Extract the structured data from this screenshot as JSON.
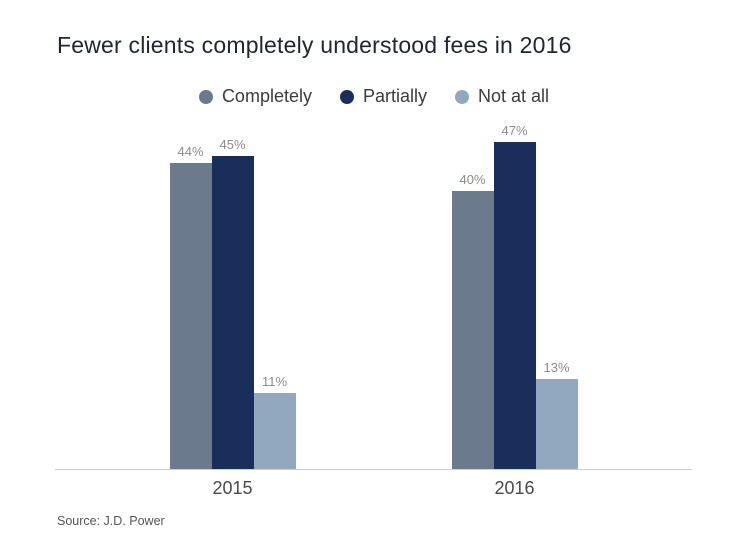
{
  "chart_data": {
    "type": "bar",
    "title": "Fewer clients completely understood fees in 2016",
    "categories": [
      "2015",
      "2016"
    ],
    "series": [
      {
        "name": "Completely",
        "values": [
          44,
          40
        ],
        "color": "#6b7b8d"
      },
      {
        "name": "Partially",
        "values": [
          45,
          47
        ],
        "color": "#1a2e5c"
      },
      {
        "name": "Not at all",
        "values": [
          11,
          13
        ],
        "color": "#92a8bf"
      }
    ],
    "value_suffix": "%",
    "ylim": [
      0,
      47
    ],
    "grid": false,
    "legend_position": "top",
    "source": "Source: J.D. Power"
  }
}
